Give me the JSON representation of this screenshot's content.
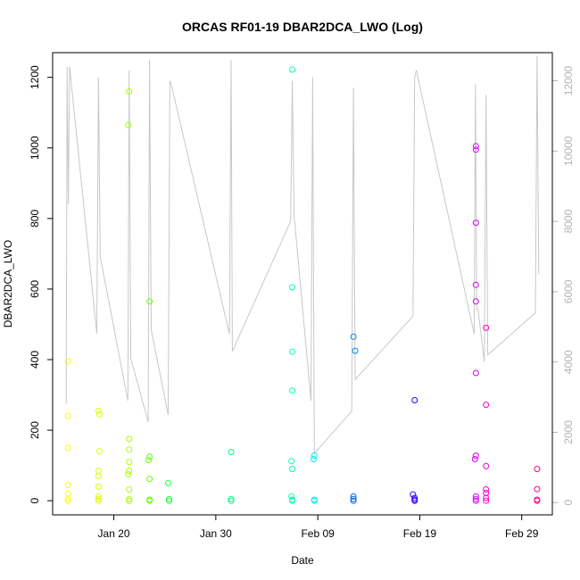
{
  "chart_data": {
    "type": "scatter",
    "title": "ORCAS RF01-19 DBAR2DCA_LWO (Log)",
    "xlabel": "Date",
    "ylabel": "DBAR2DCA_LWO",
    "x_axis": {
      "type": "date",
      "range": [
        "2016-01-14",
        "2016-03-03"
      ],
      "ticks": [
        {
          "date": "2016-01-20",
          "label": "Jan 20"
        },
        {
          "date": "2016-01-30",
          "label": "Jan 30"
        },
        {
          "date": "2016-02-09",
          "label": "Feb 09"
        },
        {
          "date": "2016-02-19",
          "label": "Feb 19"
        },
        {
          "date": "2016-02-29",
          "label": "Feb 29"
        }
      ]
    },
    "y_axis_left": {
      "range": [
        -40,
        1270
      ],
      "ticks": [
        0,
        200,
        400,
        600,
        800,
        1000,
        1200
      ]
    },
    "y_axis_right": {
      "range": [
        -350,
        12800
      ],
      "ticks": [
        0,
        2000,
        4000,
        6000,
        8000,
        10000,
        12000
      ],
      "color": "#b3b3b3"
    },
    "grid": false,
    "legend": "none",
    "colors": {
      "line": "#c8c8c8",
      "right_axis": "#b3b3b3"
    },
    "line_series": {
      "name": "",
      "axis": "right",
      "color": "#c8c8c8",
      "x": [
        "2016-01-15T08:00",
        "2016-01-15T10:00",
        "2016-01-15T13:00",
        "2016-01-15T16:00",
        "2016-01-18T08:00",
        "2016-01-18T12:00",
        "2016-01-18T16:00",
        "2016-01-21T09:00",
        "2016-01-21T12:00",
        "2016-01-21T16:00",
        "2016-01-23T09:00",
        "2016-01-23T12:00",
        "2016-01-23T16:00",
        "2016-01-25T08:00",
        "2016-01-25T12:00",
        "2016-01-25T15:00",
        "2016-01-31T08:00",
        "2016-01-31T12:00",
        "2016-01-31T15:00",
        "2016-02-06T08:00",
        "2016-02-06T12:00",
        "2016-02-06T16:00",
        "2016-02-08T08:00",
        "2016-02-08T12:00",
        "2016-02-08T16:00",
        "2016-02-12T08:00",
        "2016-02-12T12:00",
        "2016-02-12T16:00",
        "2016-02-18T08:00",
        "2016-02-18T12:00",
        "2016-02-18T16:00",
        "2016-02-24T08:00",
        "2016-02-24T11:00",
        "2016-02-24T14:00",
        "2016-02-24T17:00",
        "2016-02-25T08:00",
        "2016-02-25T12:00",
        "2016-02-25T16:00",
        "2016-03-01T08:00",
        "2016-03-01T12:00",
        "2016-03-01T16:00"
      ],
      "values": [
        2800,
        12400,
        8500,
        12400,
        4800,
        12100,
        7000,
        2900,
        12300,
        4100,
        2300,
        12600,
        4900,
        2500,
        12000,
        11900,
        4800,
        12600,
        4300,
        8000,
        12000,
        8200,
        2900,
        12100,
        1400,
        2600,
        11800,
        3500,
        5300,
        12100,
        12300,
        4800,
        11900,
        5500,
        5500,
        4000,
        11600,
        4200,
        5400,
        12700,
        6500
      ]
    },
    "scatter_series": {
      "name": "",
      "axis": "left",
      "points": [
        {
          "x": "2016-01-15T12:00",
          "y": 395,
          "color": "#ffff00"
        },
        {
          "x": "2016-01-15T12:00",
          "y": 240,
          "color": "#ffff00"
        },
        {
          "x": "2016-01-15T12:00",
          "y": 150,
          "color": "#ffff00"
        },
        {
          "x": "2016-01-15T12:00",
          "y": 45,
          "color": "#ffff00"
        },
        {
          "x": "2016-01-15T12:00",
          "y": 20,
          "color": "#ffff00"
        },
        {
          "x": "2016-01-15T12:00",
          "y": 5,
          "color": "#ffff00"
        },
        {
          "x": "2016-01-15T12:00",
          "y": 0,
          "color": "#ffff00"
        },
        {
          "x": "2016-01-18T12:00",
          "y": 255,
          "color": "#ddff00"
        },
        {
          "x": "2016-01-18T14:00",
          "y": 245,
          "color": "#ddff00"
        },
        {
          "x": "2016-01-18T14:00",
          "y": 140,
          "color": "#ddff00"
        },
        {
          "x": "2016-01-18T12:00",
          "y": 85,
          "color": "#ddff00"
        },
        {
          "x": "2016-01-18T12:00",
          "y": 70,
          "color": "#ddff00"
        },
        {
          "x": "2016-01-18T12:00",
          "y": 40,
          "color": "#ddff00"
        },
        {
          "x": "2016-01-18T12:00",
          "y": 12,
          "color": "#ddff00"
        },
        {
          "x": "2016-01-18T12:00",
          "y": 5,
          "color": "#ddff00"
        },
        {
          "x": "2016-01-18T12:00",
          "y": 0,
          "color": "#ddff00"
        },
        {
          "x": "2016-01-21T12:00",
          "y": 1160,
          "color": "#aaff00"
        },
        {
          "x": "2016-01-21T10:00",
          "y": 1065,
          "color": "#aaff00"
        },
        {
          "x": "2016-01-21T12:00",
          "y": 175,
          "color": "#aaff00"
        },
        {
          "x": "2016-01-21T12:00",
          "y": 145,
          "color": "#aaff00"
        },
        {
          "x": "2016-01-21T12:00",
          "y": 110,
          "color": "#aaff00"
        },
        {
          "x": "2016-01-21T12:00",
          "y": 85,
          "color": "#aaff00"
        },
        {
          "x": "2016-01-21T10:00",
          "y": 75,
          "color": "#aaff00"
        },
        {
          "x": "2016-01-21T12:00",
          "y": 32,
          "color": "#aaff00"
        },
        {
          "x": "2016-01-21T12:00",
          "y": 5,
          "color": "#aaff00"
        },
        {
          "x": "2016-01-21T12:00",
          "y": 0,
          "color": "#aaff00"
        },
        {
          "x": "2016-01-23T12:00",
          "y": 565,
          "color": "#66ff00"
        },
        {
          "x": "2016-01-23T12:00",
          "y": 125,
          "color": "#66ff00"
        },
        {
          "x": "2016-01-23T10:00",
          "y": 115,
          "color": "#66ff00"
        },
        {
          "x": "2016-01-23T12:00",
          "y": 62,
          "color": "#66ff00"
        },
        {
          "x": "2016-01-23T12:00",
          "y": 3,
          "color": "#66ff00"
        },
        {
          "x": "2016-01-23T12:00",
          "y": 0,
          "color": "#66ff00"
        },
        {
          "x": "2016-01-25T08:00",
          "y": 50,
          "color": "#22ff44"
        },
        {
          "x": "2016-01-25T10:00",
          "y": 5,
          "color": "#22ff44"
        },
        {
          "x": "2016-01-25T10:00",
          "y": 0,
          "color": "#22ff44"
        },
        {
          "x": "2016-01-31T12:00",
          "y": 138,
          "color": "#00ff88"
        },
        {
          "x": "2016-01-31T12:00",
          "y": 5,
          "color": "#00ff88"
        },
        {
          "x": "2016-01-31T12:00",
          "y": 0,
          "color": "#00ff88"
        },
        {
          "x": "2016-02-06T12:00",
          "y": 1222,
          "color": "#00ffbb"
        },
        {
          "x": "2016-02-06T12:00",
          "y": 605,
          "color": "#00ffbb"
        },
        {
          "x": "2016-02-06T12:00",
          "y": 422,
          "color": "#00ffbb"
        },
        {
          "x": "2016-02-06T12:00",
          "y": 312,
          "color": "#00ffbb"
        },
        {
          "x": "2016-02-06T10:00",
          "y": 112,
          "color": "#00ffbb"
        },
        {
          "x": "2016-02-06T12:00",
          "y": 90,
          "color": "#00ffbb"
        },
        {
          "x": "2016-02-06T10:00",
          "y": 12,
          "color": "#00ffbb"
        },
        {
          "x": "2016-02-06T12:00",
          "y": 3,
          "color": "#00ffbb"
        },
        {
          "x": "2016-02-06T12:00",
          "y": 0,
          "color": "#00ffbb"
        },
        {
          "x": "2016-02-08T16:00",
          "y": 128,
          "color": "#00eeee"
        },
        {
          "x": "2016-02-08T14:00",
          "y": 118,
          "color": "#00eeee"
        },
        {
          "x": "2016-02-08T16:00",
          "y": 3,
          "color": "#00eeee"
        },
        {
          "x": "2016-02-08T16:00",
          "y": 0,
          "color": "#00eeee"
        },
        {
          "x": "2016-02-12T12:00",
          "y": 465,
          "color": "#0088ff"
        },
        {
          "x": "2016-02-12T16:00",
          "y": 425,
          "color": "#0088ff"
        },
        {
          "x": "2016-02-12T12:00",
          "y": 12,
          "color": "#0066ff"
        },
        {
          "x": "2016-02-12T12:00",
          "y": 5,
          "color": "#0066ff"
        },
        {
          "x": "2016-02-12T12:00",
          "y": 0,
          "color": "#0066ff"
        },
        {
          "x": "2016-02-18T12:00",
          "y": 285,
          "color": "#3300ff"
        },
        {
          "x": "2016-02-18T08:00",
          "y": 18,
          "color": "#3300ff"
        },
        {
          "x": "2016-02-18T12:00",
          "y": 8,
          "color": "#3300ff"
        },
        {
          "x": "2016-02-18T12:00",
          "y": 3,
          "color": "#3300ff"
        },
        {
          "x": "2016-02-18T12:00",
          "y": 0,
          "color": "#3300ff"
        },
        {
          "x": "2016-02-24T12:00",
          "y": 1005,
          "color": "#dd00ff"
        },
        {
          "x": "2016-02-24T12:00",
          "y": 995,
          "color": "#dd00ff"
        },
        {
          "x": "2016-02-24T12:00",
          "y": 788,
          "color": "#dd00ff"
        },
        {
          "x": "2016-02-24T12:00",
          "y": 612,
          "color": "#dd00ff"
        },
        {
          "x": "2016-02-24T12:00",
          "y": 565,
          "color": "#dd00ff"
        },
        {
          "x": "2016-02-24T12:00",
          "y": 362,
          "color": "#dd00ff"
        },
        {
          "x": "2016-02-24T12:00",
          "y": 128,
          "color": "#dd00ff"
        },
        {
          "x": "2016-02-24T10:00",
          "y": 118,
          "color": "#dd00ff"
        },
        {
          "x": "2016-02-24T12:00",
          "y": 12,
          "color": "#dd00ff"
        },
        {
          "x": "2016-02-24T12:00",
          "y": 5,
          "color": "#dd00ff"
        },
        {
          "x": "2016-02-24T12:00",
          "y": 0,
          "color": "#dd00ff"
        },
        {
          "x": "2016-02-25T12:00",
          "y": 490,
          "color": "#ff00cc"
        },
        {
          "x": "2016-02-25T12:00",
          "y": 272,
          "color": "#ff00cc"
        },
        {
          "x": "2016-02-25T12:00",
          "y": 98,
          "color": "#ff00cc"
        },
        {
          "x": "2016-02-25T12:00",
          "y": 32,
          "color": "#ff00cc"
        },
        {
          "x": "2016-02-25T12:00",
          "y": 22,
          "color": "#ff00cc"
        },
        {
          "x": "2016-02-25T12:00",
          "y": 8,
          "color": "#ff00cc"
        },
        {
          "x": "2016-02-25T12:00",
          "y": 0,
          "color": "#ff00cc"
        },
        {
          "x": "2016-03-01T12:00",
          "y": 90,
          "color": "#ff0088"
        },
        {
          "x": "2016-03-01T12:00",
          "y": 33,
          "color": "#ff0088"
        },
        {
          "x": "2016-03-01T12:00",
          "y": 3,
          "color": "#ff0088"
        },
        {
          "x": "2016-03-01T12:00",
          "y": 0,
          "color": "#ff0088"
        }
      ]
    }
  }
}
